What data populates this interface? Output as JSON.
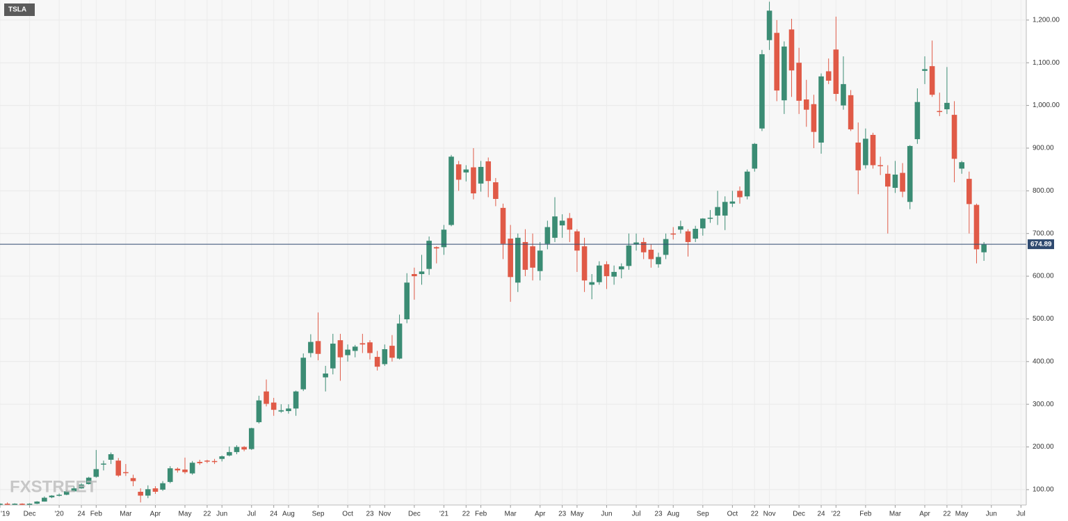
{
  "chart_data": {
    "type": "candlestick",
    "title": "TSLA",
    "watermark": "FXSTREET",
    "categories": [
      "'19",
      null,
      null,
      null,
      "Dec",
      null,
      null,
      null,
      "'20",
      null,
      null,
      "24",
      null,
      "Feb",
      null,
      null,
      null,
      "Mar",
      null,
      null,
      null,
      "Apr",
      null,
      null,
      null,
      "May",
      null,
      null,
      "22",
      null,
      "Jun",
      null,
      null,
      null,
      "Jul",
      null,
      null,
      "24",
      null,
      "Aug",
      null,
      null,
      null,
      "Sep",
      null,
      null,
      null,
      "Oct",
      null,
      null,
      "23",
      null,
      "Nov",
      null,
      null,
      null,
      "Dec",
      null,
      null,
      null,
      "'21",
      null,
      null,
      "22",
      null,
      "Feb",
      null,
      null,
      null,
      "Mar",
      null,
      null,
      null,
      "Apr",
      null,
      null,
      "23",
      null,
      "May",
      null,
      null,
      null,
      "Jun",
      null,
      null,
      null,
      "Jul",
      null,
      null,
      "23",
      null,
      "Aug",
      null,
      null,
      null,
      "Sep",
      null,
      null,
      null,
      "Oct",
      null,
      null,
      "22",
      null,
      "Nov",
      null,
      null,
      null,
      "Dec",
      null,
      null,
      "24",
      null,
      "'22",
      null,
      null,
      null,
      "Feb",
      null,
      null,
      null,
      "Mar",
      null,
      null,
      null,
      "Apr",
      null,
      null,
      "22",
      null,
      "May",
      null,
      null,
      null,
      "Jun",
      null,
      null,
      null,
      "Jul"
    ],
    "open": [
      66,
      67,
      66,
      67,
      66,
      67,
      72,
      82,
      86,
      88,
      96,
      103,
      113,
      130,
      160,
      170,
      168,
      141,
      127,
      95,
      86,
      103,
      100,
      118,
      149,
      147,
      138,
      165,
      168,
      167,
      172,
      180,
      188,
      200,
      195,
      258,
      330,
      304,
      283,
      284,
      290,
      335,
      420,
      448,
      363,
      384,
      450,
      415,
      425,
      443,
      445,
      411,
      394,
      437,
      407,
      499,
      605,
      605,
      617,
      668,
      668,
      720,
      862,
      843,
      855,
      817,
      869,
      820,
      760,
      688,
      585,
      680,
      670,
      612,
      676,
      690,
      719,
      736,
      705,
      670,
      580,
      586,
      628,
      599,
      616,
      624,
      674,
      680,
      662,
      628,
      650,
      700,
      709,
      705,
      688,
      712,
      735,
      742,
      742,
      770,
      800,
      787,
      852,
      946,
      1153,
      1170,
      1012,
      1178,
      1100,
      1014,
      1003,
      913,
      1080,
      1131,
      1000,
      1024,
      913,
      860,
      931,
      860,
      840,
      807,
      842,
      774,
      921,
      1081,
      1092,
      987,
      991,
      978,
      852,
      828,
      767,
      656,
      null,
      null,
      null,
      null,
      null
    ],
    "high": [
      68,
      70,
      68,
      68,
      68,
      73,
      84,
      87,
      91,
      99,
      108,
      115,
      130,
      193,
      168,
      187,
      174,
      160,
      135,
      103,
      110,
      108,
      120,
      155,
      152,
      175,
      167,
      170,
      170,
      172,
      180,
      201,
      204,
      202,
      245,
      320,
      358,
      315,
      300,
      300,
      332,
      419,
      464,
      515,
      390,
      465,
      465,
      440,
      439,
      465,
      450,
      425,
      440,
      462,
      510,
      607,
      620,
      650,
      693,
      670,
      720,
      884,
      870,
      860,
      900,
      870,
      878,
      830,
      770,
      720,
      700,
      710,
      700,
      680,
      730,
      785,
      745,
      748,
      710,
      690,
      605,
      635,
      635,
      625,
      630,
      700,
      700,
      690,
      675,
      655,
      700,
      715,
      730,
      710,
      718,
      736,
      755,
      800,
      787,
      800,
      810,
      850,
      912,
      1130,
      1243,
      1200,
      1150,
      1203,
      1135,
      1060,
      1025,
      1075,
      1110,
      1208,
      1115,
      1036,
      960,
      946,
      936,
      880,
      860,
      870,
      865,
      907,
      1040,
      1115,
      1152,
      1030,
      1090,
      1010,
      870,
      845,
      770,
      680,
      null,
      null,
      null,
      null,
      null
    ],
    "low": [
      64,
      65,
      65,
      64,
      65,
      66,
      72,
      80,
      84,
      87,
      95,
      102,
      112,
      128,
      145,
      160,
      130,
      132,
      108,
      70,
      80,
      90,
      97,
      115,
      140,
      137,
      135,
      158,
      162,
      160,
      166,
      178,
      183,
      190,
      193,
      255,
      295,
      273,
      280,
      278,
      273,
      331,
      410,
      403,
      330,
      370,
      355,
      400,
      410,
      420,
      405,
      379,
      390,
      400,
      405,
      490,
      545,
      580,
      603,
      630,
      650,
      717,
      800,
      822,
      780,
      798,
      785,
      764,
      640,
      540,
      563,
      600,
      590,
      590,
      663,
      680,
      690,
      680,
      610,
      563,
      546,
      580,
      570,
      580,
      595,
      615,
      660,
      640,
      620,
      620,
      640,
      686,
      700,
      646,
      680,
      695,
      725,
      720,
      708,
      762,
      770,
      780,
      845,
      940,
      1130,
      1010,
      980,
      1020,
      980,
      950,
      900,
      887,
      1050,
      1010,
      990,
      940,
      792,
      852,
      852,
      837,
      700,
      795,
      785,
      757,
      910,
      1050,
      1020,
      975,
      980,
      820,
      840,
      700,
      630,
      636,
      null,
      null,
      null,
      null,
      null
    ],
    "close": [
      67,
      66,
      67,
      66,
      67,
      72,
      81,
      86,
      88,
      96,
      103,
      112,
      128,
      148,
      161,
      183,
      133,
      139,
      120,
      86,
      101,
      95,
      115,
      150,
      145,
      141,
      163,
      162,
      166,
      165,
      178,
      188,
      200,
      194,
      244,
      309,
      301,
      287,
      286,
      290,
      330,
      409,
      446,
      418,
      372,
      442,
      410,
      428,
      435,
      440,
      420,
      388,
      429,
      409,
      489,
      585,
      600,
      611,
      683,
      665,
      709,
      880,
      826,
      850,
      794,
      856,
      823,
      781,
      676,
      598,
      690,
      615,
      620,
      660,
      715,
      740,
      730,
      709,
      660,
      590,
      586,
      625,
      600,
      610,
      623,
      672,
      679,
      656,
      640,
      645,
      687,
      699,
      717,
      680,
      711,
      735,
      737,
      762,
      774,
      775,
      785,
      845,
      910,
      1120,
      1222,
      1035,
      1138,
      1082,
      1011,
      990,
      938,
      1068,
      1058,
      1027,
      1050,
      944,
      848,
      922,
      860,
      858,
      810,
      838,
      798,
      905,
      1008,
      1085,
      1025,
      985,
      1006,
      875,
      867,
      769,
      663,
      674,
      null,
      null,
      null,
      null,
      null
    ],
    "up_color": "#3b8c74",
    "down_color": "#e05a47",
    "last_price": 674.89,
    "last_price_color": "#2f4a70",
    "ylim": [
      64,
      1247
    ],
    "yticks": [
      {
        "value": 100,
        "label": "100.00"
      },
      {
        "value": 200,
        "label": "200.00"
      },
      {
        "value": 300,
        "label": "300.00"
      },
      {
        "value": 400,
        "label": "400.00"
      },
      {
        "value": 500,
        "label": "500.00"
      },
      {
        "value": 600,
        "label": "600.00"
      },
      {
        "value": 700,
        "label": "700.00"
      },
      {
        "value": 800,
        "label": "800.00"
      },
      {
        "value": 900,
        "label": "900.00"
      },
      {
        "value": 1000,
        "label": "1,000.00"
      },
      {
        "value": 1100,
        "label": "1,100.00"
      },
      {
        "value": 1200,
        "label": "1,200.00"
      }
    ],
    "grid": true
  }
}
